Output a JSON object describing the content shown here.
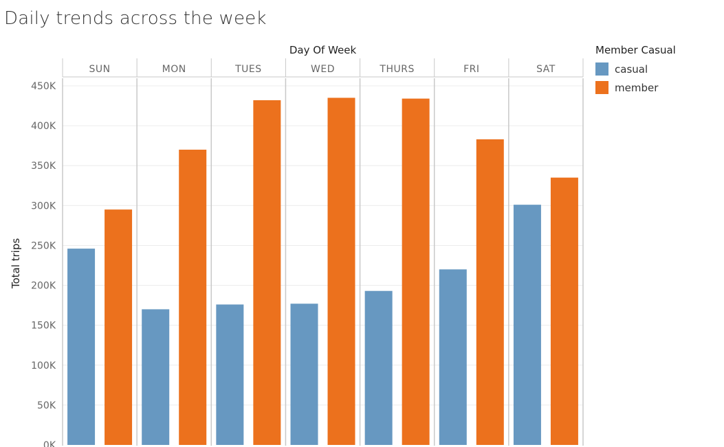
{
  "chart_data": {
    "type": "bar",
    "title": "Daily trends across the week",
    "column_header": "Day Of Week",
    "categories": [
      "SUN",
      "MON",
      "TUES",
      "WED",
      "THURS",
      "FRI",
      "SAT"
    ],
    "ylabel": "Total trips",
    "ylim": [
      0,
      460000
    ],
    "yticks": [
      0,
      50000,
      100000,
      150000,
      200000,
      250000,
      300000,
      350000,
      400000,
      450000
    ],
    "ytick_labels": [
      "0K",
      "50K",
      "100K",
      "150K",
      "200K",
      "250K",
      "300K",
      "350K",
      "400K",
      "450K"
    ],
    "grid": true,
    "legend": {
      "title": "Member Casual",
      "position": "right"
    },
    "series": [
      {
        "name": "casual",
        "color": "#6798c1",
        "values": [
          246000,
          170000,
          176000,
          177000,
          193000,
          220000,
          301000
        ]
      },
      {
        "name": "member",
        "color": "#ec711d",
        "values": [
          295000,
          370000,
          432000,
          435000,
          434000,
          383000,
          335000
        ]
      }
    ]
  }
}
